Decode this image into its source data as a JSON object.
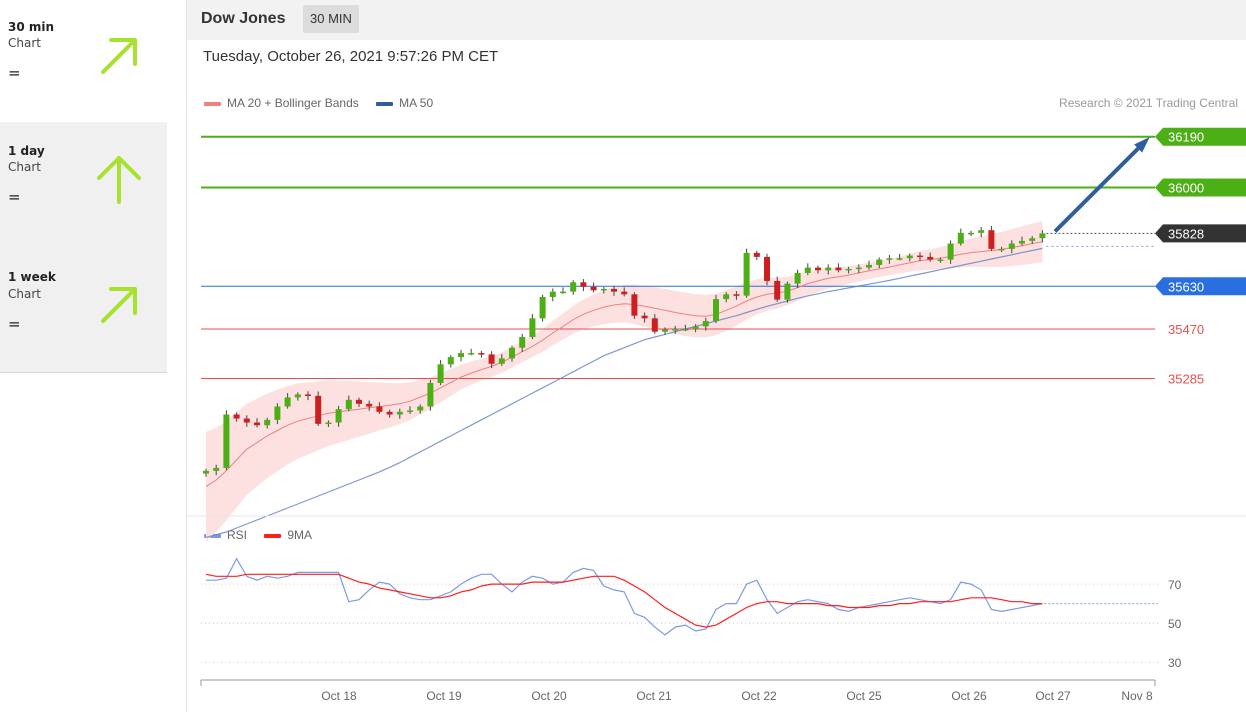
{
  "sidebar": {
    "items": [
      {
        "name": "30 min",
        "sub": "Chart",
        "status": "=",
        "direction": "up-right"
      },
      {
        "name": "1 day",
        "sub": "Chart",
        "status": "=",
        "direction": "up"
      },
      {
        "name": "1 week",
        "sub": "Chart",
        "status": "=",
        "direction": "up-right"
      }
    ],
    "arrow_color": "#a6e22e"
  },
  "header": {
    "title": "Dow Jones",
    "timeframe": "30 MIN"
  },
  "timestamp": "Tuesday, October 26, 2021 9:57:26 PM CET",
  "legend": {
    "ma20": "MA 20 + Bollinger Bands",
    "ma50": "MA 50",
    "rsi": "RSI",
    "ma9": "9MA"
  },
  "copyright": "Research © 2021 Trading Central",
  "colors": {
    "up": "#4caf15",
    "down": "#cc1f1f",
    "ma20": "#f08080",
    "ma50": "#5b7fc4",
    "band": "#fde0e0",
    "resistance": "#4caf15",
    "support": "#e84f4f",
    "pivot": "#2a6fe0",
    "last": "#333333",
    "forecast_arrow": "#2d5f9e",
    "rsi": "#7b9ae6",
    "ma9": "#ff1e1e"
  },
  "chart_data": [
    {
      "type": "candlestick",
      "title": "Dow Jones",
      "x_labels": [
        "Oct 18",
        "Oct 19",
        "Oct 20",
        "Oct 21",
        "Oct 22",
        "Oct 25",
        "Oct 26",
        "Oct 27",
        "Nov 8"
      ],
      "ylim": [
        34800,
        36260
      ],
      "levels": [
        {
          "value": 36190,
          "label": "36190",
          "kind": "resistance"
        },
        {
          "value": 36000,
          "label": "36000",
          "kind": "resistance"
        },
        {
          "value": 35828,
          "label": "35828",
          "kind": "last"
        },
        {
          "value": 35630,
          "label": "35630",
          "kind": "pivot"
        },
        {
          "value": 35470,
          "label": "35470",
          "kind": "support"
        },
        {
          "value": 35285,
          "label": "35285",
          "kind": "support"
        }
      ],
      "closes": [
        34939,
        34950,
        35150,
        35135,
        35120,
        35110,
        35130,
        35180,
        35214,
        35225,
        35220,
        35115,
        35120,
        35170,
        35205,
        35190,
        35180,
        35160,
        35150,
        35160,
        35165,
        35180,
        35268,
        35338,
        35365,
        35380,
        35380,
        35375,
        35340,
        35360,
        35400,
        35440,
        35510,
        35590,
        35610,
        35610,
        35645,
        35628,
        35615,
        35620,
        35610,
        35600,
        35520,
        35510,
        35460,
        35468,
        35470,
        35470,
        35480,
        35500,
        35582,
        35600,
        35595,
        35755,
        35740,
        35650,
        35580,
        35640,
        35680,
        35700,
        35690,
        35700,
        35690,
        35695,
        35700,
        35710,
        35730,
        35735,
        35735,
        35745,
        35740,
        35730,
        35730,
        35790,
        35830,
        35830,
        35840,
        35770,
        35770,
        35790,
        35800,
        35810,
        35828
      ],
      "ma20": [
        34880,
        34905,
        34940,
        34980,
        35020,
        35045,
        35070,
        35090,
        35110,
        35125,
        35135,
        35145,
        35155,
        35160,
        35165,
        35170,
        35175,
        35180,
        35185,
        35190,
        35200,
        35215,
        35230,
        35250,
        35270,
        35290,
        35305,
        35318,
        35330,
        35345,
        35365,
        35385,
        35405,
        35428,
        35455,
        35480,
        35505,
        35525,
        35540,
        35552,
        35560,
        35565,
        35562,
        35555,
        35548,
        35540,
        35532,
        35525,
        35520,
        35518,
        35525,
        35540,
        35556,
        35575,
        35590,
        35600,
        35605,
        35612,
        35625,
        35640,
        35650,
        35660,
        35665,
        35672,
        35680,
        35688,
        35695,
        35702,
        35710,
        35718,
        35726,
        35730,
        35735,
        35742,
        35750,
        35756,
        35760,
        35764,
        35768,
        35775,
        35782,
        35790,
        35797
      ],
      "ma50": [
        34690,
        34700,
        34710,
        34725,
        34740,
        34755,
        34770,
        34785,
        34800,
        34815,
        34830,
        34845,
        34860,
        34875,
        34890,
        34905,
        34920,
        34935,
        34952,
        34970,
        34990,
        35010,
        35030,
        35050,
        35070,
        35090,
        35110,
        35130,
        35150,
        35170,
        35190,
        35210,
        35230,
        35250,
        35270,
        35290,
        35310,
        35330,
        35350,
        35370,
        35385,
        35400,
        35415,
        35430,
        35440,
        35450,
        35460,
        35470,
        35480,
        35490,
        35500,
        35510,
        35520,
        35532,
        35544,
        35555,
        35565,
        35575,
        35585,
        35594,
        35602,
        35610,
        35617,
        35624,
        35631,
        35638,
        35645,
        35652,
        35660,
        35668,
        35676,
        35684,
        35692,
        35700,
        35708,
        35716,
        35724,
        35732,
        35740,
        35748,
        35756,
        35764,
        35772
      ]
    },
    {
      "type": "line",
      "title": "RSI",
      "series": [
        {
          "name": "RSI",
          "values": [
            72,
            72,
            73,
            83,
            74,
            72,
            74,
            73,
            74,
            76,
            76,
            76,
            76,
            76,
            61,
            62,
            67,
            71,
            70,
            65,
            63,
            62,
            62,
            64,
            66,
            70,
            73,
            75,
            75,
            70,
            66,
            71,
            74,
            73,
            70,
            71,
            76,
            78,
            77,
            69,
            67,
            66,
            55,
            53,
            48,
            44,
            48,
            49,
            46,
            47,
            57,
            60,
            60,
            70,
            72,
            62,
            55,
            58,
            61,
            62,
            61,
            60,
            57,
            56,
            58,
            59,
            60,
            61,
            62,
            63,
            62,
            61,
            60,
            62,
            71,
            70,
            67,
            57,
            56,
            57,
            58,
            59,
            60
          ]
        },
        {
          "name": "9MA",
          "values": [
            75,
            74,
            74,
            74,
            75,
            75,
            75,
            75,
            75,
            75,
            75,
            75,
            75,
            75,
            73,
            71,
            70,
            68,
            67,
            66,
            65,
            64,
            63,
            63,
            64,
            66,
            67,
            69,
            70,
            70,
            70,
            70,
            71,
            71,
            71,
            71,
            72,
            73,
            74,
            74,
            74,
            72,
            69,
            66,
            62,
            58,
            55,
            52,
            49,
            48,
            49,
            52,
            55,
            58,
            60,
            61,
            61,
            60,
            60,
            60,
            60,
            59,
            59,
            58,
            58,
            58,
            59,
            59,
            60,
            60,
            61,
            61,
            61,
            61,
            62,
            63,
            63,
            63,
            62,
            61,
            61,
            60,
            60
          ]
        }
      ],
      "ylim": [
        25,
        90
      ],
      "y_ticks": [
        70,
        50,
        30
      ],
      "x_labels": [
        "Oct 18",
        "Oct 19",
        "Oct 20",
        "Oct 21",
        "Oct 22",
        "Oct 25",
        "Oct 26",
        "Oct 27",
        "Nov 8"
      ]
    }
  ]
}
